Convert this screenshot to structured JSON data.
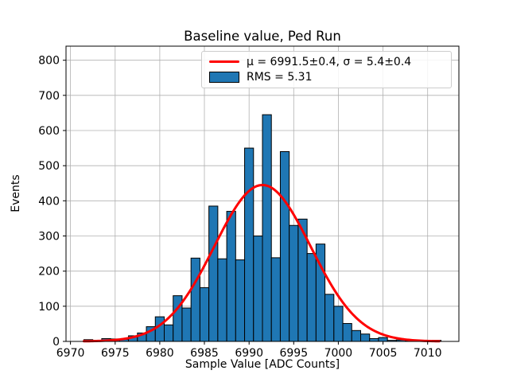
{
  "chart_data": {
    "type": "bar",
    "title": "Baseline value, Ped Run",
    "xlabel": "Sample Value [ADC Counts]",
    "ylabel": "Events",
    "xlim": [
      6969.5,
      7013.5
    ],
    "ylim": [
      0,
      840
    ],
    "xticks": [
      6970,
      6975,
      6980,
      6985,
      6990,
      6995,
      7000,
      7005,
      7010
    ],
    "yticks": [
      0,
      100,
      200,
      300,
      400,
      500,
      600,
      700,
      800
    ],
    "grid": true,
    "grid_color": "#b0b0b0",
    "spine_color": "#000000",
    "bin_width": 1,
    "bar_color": "#1f77b4",
    "bar_edge_color": "#000000",
    "categories": [
      6972,
      6973,
      6974,
      6975,
      6976,
      6977,
      6978,
      6979,
      6980,
      6981,
      6982,
      6983,
      6984,
      6985,
      6986,
      6987,
      6988,
      6989,
      6990,
      6991,
      6992,
      6993,
      6994,
      6995,
      6996,
      6997,
      6998,
      6999,
      7000,
      7001,
      7002,
      7003,
      7004,
      7005,
      7006,
      7007,
      7008,
      7009,
      7010,
      7011
    ],
    "values": [
      5,
      3,
      8,
      7,
      6,
      16,
      24,
      42,
      70,
      47,
      130,
      95,
      237,
      153,
      385,
      235,
      370,
      232,
      550,
      300,
      645,
      238,
      540,
      330,
      348,
      250,
      277,
      134,
      100,
      51,
      31,
      21,
      8,
      11,
      3,
      4,
      2,
      1,
      2,
      3
    ],
    "fit_curve": {
      "shape": "gaussian",
      "mu": 6991.5,
      "sigma": 5.4,
      "amplitude": 445,
      "x_start": 6971.5,
      "x_end": 7011.3,
      "color": "#ff0000",
      "line_width": 3
    },
    "legend_position": "upper right",
    "legend_entries": [
      {
        "type": "line",
        "color": "#ff0000",
        "label": "μ = 6991.5±0.4, σ = 5.4±0.4"
      },
      {
        "type": "patch",
        "color": "#1f77b4",
        "label": "RMS = 5.31"
      }
    ]
  }
}
